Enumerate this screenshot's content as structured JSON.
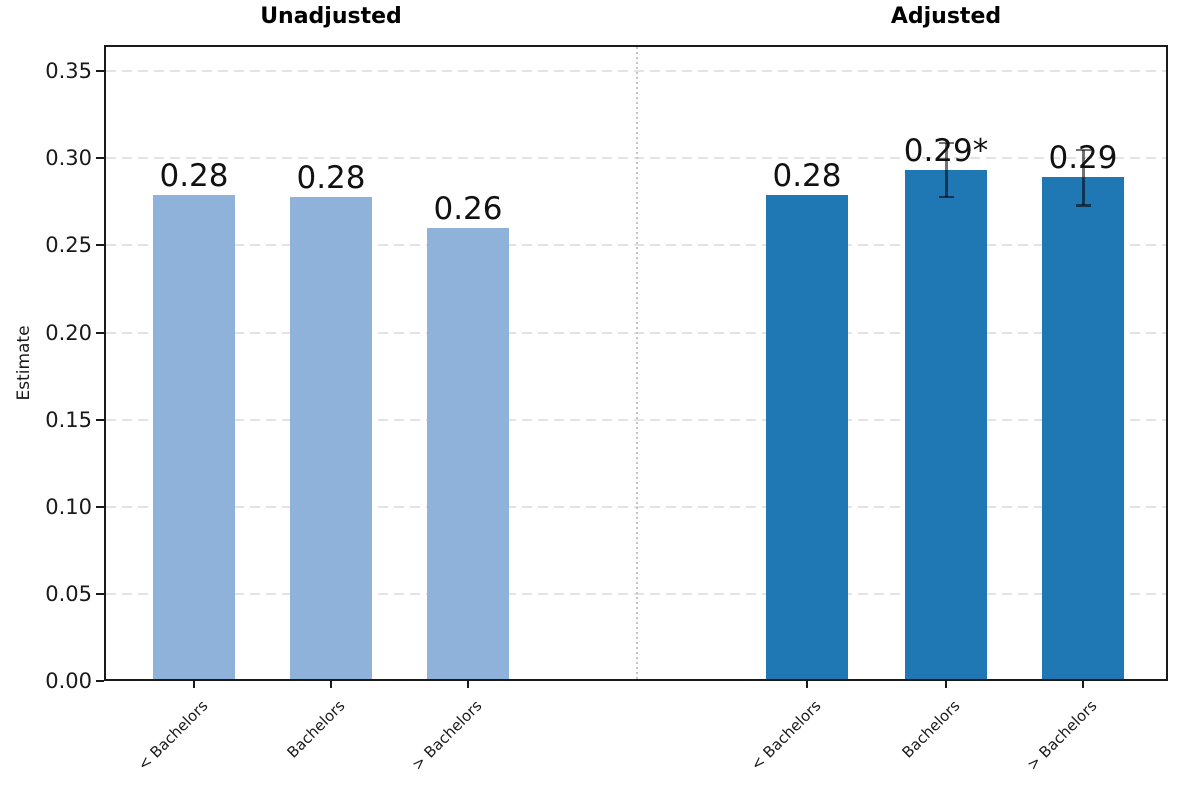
{
  "chart_data": {
    "type": "bar",
    "ylabel": "Estimate",
    "ylim": [
      0,
      0.365
    ],
    "ytick_values": [
      0.0,
      0.05,
      0.1,
      0.15,
      0.2,
      0.25,
      0.3,
      0.35
    ],
    "ytick_labels": [
      "0.00",
      "0.05",
      "0.10",
      "0.15",
      "0.20",
      "0.25",
      "0.30",
      "0.35"
    ],
    "grid": "horizontal-dashed",
    "panel_separator": "vertical-dotted",
    "legend_position": "none",
    "panels": [
      {
        "title": "Unadjusted",
        "bar_color": "#8EB2DA",
        "categories": [
          "< Bachelors",
          "Bachelors",
          "> Bachelors"
        ],
        "values": [
          0.279,
          0.278,
          0.26
        ],
        "bar_labels": [
          "0.28",
          "0.28",
          "0.26"
        ],
        "error_bars": [
          null,
          null,
          null
        ]
      },
      {
        "title": "Adjusted",
        "bar_color": "#1F77B4",
        "categories": [
          "< Bachelors",
          "Bachelors",
          "> Bachelors"
        ],
        "values": [
          0.279,
          0.293,
          0.289
        ],
        "bar_labels": [
          "0.28",
          "0.29*",
          "0.29"
        ],
        "error_bars": [
          null,
          [
            0.278,
            0.309
          ],
          [
            0.273,
            0.305
          ]
        ]
      }
    ]
  }
}
